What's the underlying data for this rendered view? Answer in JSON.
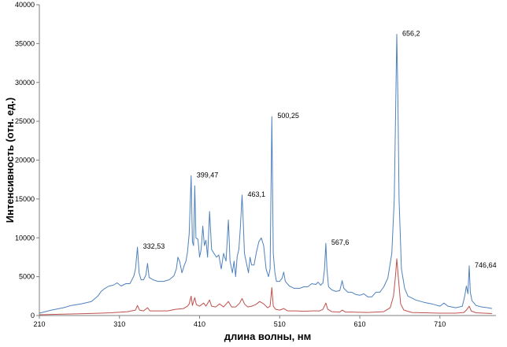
{
  "chart_data": {
    "type": "line",
    "title": "",
    "xlabel": "длина волны, нм",
    "ylabel": "Интенсивность (отн. ед.)",
    "xlim": [
      210,
      780
    ],
    "ylim": [
      0,
      40000
    ],
    "x_ticks": [
      210,
      310,
      410,
      510,
      610,
      710
    ],
    "y_ticks": [
      0,
      5000,
      10000,
      15000,
      20000,
      25000,
      30000,
      35000,
      40000
    ],
    "grid": false,
    "legend": "none",
    "colors": {
      "blue": "#4f81bd",
      "red": "#c0504d",
      "axis": "#7f7f7f"
    },
    "annotations": [
      {
        "text": "332,53",
        "x": 332.53,
        "y": 8800
      },
      {
        "text": "399,47",
        "x": 399.47,
        "y": 18000
      },
      {
        "text": "463,1",
        "x": 463.1,
        "y": 15500
      },
      {
        "text": "500,25",
        "x": 500.25,
        "y": 25600
      },
      {
        "text": "567,6",
        "x": 567.6,
        "y": 9300
      },
      {
        "text": "656,2",
        "x": 656.2,
        "y": 36200
      },
      {
        "text": "746,64",
        "x": 746.64,
        "y": 6400
      }
    ],
    "series": [
      {
        "color": "#4f81bd",
        "points": [
          [
            210,
            300
          ],
          [
            225,
            700
          ],
          [
            240,
            1000
          ],
          [
            250,
            1300
          ],
          [
            262,
            1500
          ],
          [
            275,
            1800
          ],
          [
            283,
            2500
          ],
          [
            287,
            3100
          ],
          [
            292,
            3500
          ],
          [
            297,
            3800
          ],
          [
            302,
            3900
          ],
          [
            307,
            4200
          ],
          [
            312,
            3800
          ],
          [
            318,
            4100
          ],
          [
            323,
            4100
          ],
          [
            328,
            5100
          ],
          [
            330,
            6000
          ],
          [
            332.5,
            8800
          ],
          [
            334.5,
            5500
          ],
          [
            337,
            4600
          ],
          [
            340,
            4600
          ],
          [
            343,
            5200
          ],
          [
            345,
            6700
          ],
          [
            347,
            4900
          ],
          [
            352,
            4600
          ],
          [
            358,
            4400
          ],
          [
            365,
            4400
          ],
          [
            372,
            4600
          ],
          [
            378,
            5100
          ],
          [
            381,
            6000
          ],
          [
            383,
            7500
          ],
          [
            385,
            7000
          ],
          [
            388,
            5500
          ],
          [
            391,
            6500
          ],
          [
            393,
            7000
          ],
          [
            395,
            8200
          ],
          [
            397,
            10500
          ],
          [
            399.5,
            18000
          ],
          [
            401,
            9500
          ],
          [
            402.5,
            9000
          ],
          [
            404,
            16700
          ],
          [
            405.5,
            10000
          ],
          [
            408,
            9800
          ],
          [
            410,
            7500
          ],
          [
            412,
            8500
          ],
          [
            414,
            11500
          ],
          [
            416,
            9000
          ],
          [
            418,
            9700
          ],
          [
            420,
            7500
          ],
          [
            422.5,
            13400
          ],
          [
            425,
            8500
          ],
          [
            428,
            8000
          ],
          [
            431,
            7500
          ],
          [
            434,
            7800
          ],
          [
            437,
            6000
          ],
          [
            440,
            8000
          ],
          [
            443,
            7000
          ],
          [
            446,
            12300
          ],
          [
            448,
            7000
          ],
          [
            451,
            5500
          ],
          [
            453,
            7000
          ],
          [
            455,
            5000
          ],
          [
            457,
            7600
          ],
          [
            459,
            8500
          ],
          [
            461,
            11500
          ],
          [
            463.1,
            15500
          ],
          [
            464.5,
            12000
          ],
          [
            466,
            8000
          ],
          [
            468,
            7000
          ],
          [
            471,
            5500
          ],
          [
            473,
            7500
          ],
          [
            475,
            6500
          ],
          [
            478,
            6500
          ],
          [
            481,
            8200
          ],
          [
            484,
            9500
          ],
          [
            487,
            10000
          ],
          [
            490,
            9000
          ],
          [
            493,
            6000
          ],
          [
            496,
            5000
          ],
          [
            498,
            6000
          ],
          [
            500.25,
            25600
          ],
          [
            502,
            8000
          ],
          [
            504,
            5500
          ],
          [
            506,
            4400
          ],
          [
            510,
            4400
          ],
          [
            513,
            4800
          ],
          [
            515,
            5600
          ],
          [
            517,
            4400
          ],
          [
            522,
            3800
          ],
          [
            528,
            3500
          ],
          [
            535,
            3500
          ],
          [
            540,
            3700
          ],
          [
            545,
            3700
          ],
          [
            550,
            4100
          ],
          [
            555,
            4000
          ],
          [
            558,
            4300
          ],
          [
            561,
            3900
          ],
          [
            564,
            4200
          ],
          [
            566,
            6000
          ],
          [
            567.6,
            9300
          ],
          [
            569,
            6000
          ],
          [
            571,
            3700
          ],
          [
            575,
            3300
          ],
          [
            580,
            3100
          ],
          [
            585,
            3200
          ],
          [
            588,
            4500
          ],
          [
            590,
            3500
          ],
          [
            595,
            3000
          ],
          [
            600,
            3000
          ],
          [
            605,
            2700
          ],
          [
            610,
            2600
          ],
          [
            615,
            2800
          ],
          [
            620,
            2400
          ],
          [
            625,
            2400
          ],
          [
            630,
            3000
          ],
          [
            635,
            3000
          ],
          [
            640,
            3700
          ],
          [
            645,
            4800
          ],
          [
            650,
            8000
          ],
          [
            653,
            15000
          ],
          [
            655,
            28000
          ],
          [
            656.2,
            36200
          ],
          [
            657.5,
            28000
          ],
          [
            659,
            15000
          ],
          [
            662,
            6000
          ],
          [
            666,
            3500
          ],
          [
            670,
            2500
          ],
          [
            680,
            2000
          ],
          [
            690,
            1700
          ],
          [
            700,
            1500
          ],
          [
            710,
            1200
          ],
          [
            715,
            1600
          ],
          [
            720,
            1200
          ],
          [
            730,
            1000
          ],
          [
            738,
            1200
          ],
          [
            741,
            2500
          ],
          [
            743,
            3800
          ],
          [
            745,
            2800
          ],
          [
            746.6,
            6400
          ],
          [
            748,
            3000
          ],
          [
            750,
            1900
          ],
          [
            755,
            1300
          ],
          [
            762,
            1100
          ],
          [
            770,
            1000
          ],
          [
            775,
            900
          ]
        ]
      },
      {
        "color": "#c0504d",
        "points": [
          [
            210,
            100
          ],
          [
            240,
            180
          ],
          [
            270,
            250
          ],
          [
            300,
            350
          ],
          [
            320,
            500
          ],
          [
            330,
            700
          ],
          [
            332.5,
            1300
          ],
          [
            335,
            700
          ],
          [
            340,
            600
          ],
          [
            345,
            1000
          ],
          [
            348,
            600
          ],
          [
            360,
            600
          ],
          [
            370,
            600
          ],
          [
            380,
            800
          ],
          [
            390,
            900
          ],
          [
            395,
            1200
          ],
          [
            397,
            1500
          ],
          [
            399.5,
            2500
          ],
          [
            401,
            1300
          ],
          [
            404,
            2300
          ],
          [
            406,
            1400
          ],
          [
            410,
            1200
          ],
          [
            415,
            1600
          ],
          [
            418,
            1200
          ],
          [
            422.5,
            2000
          ],
          [
            425,
            1200
          ],
          [
            430,
            1100
          ],
          [
            435,
            1500
          ],
          [
            440,
            1100
          ],
          [
            446,
            1800
          ],
          [
            450,
            1100
          ],
          [
            455,
            1100
          ],
          [
            460,
            1600
          ],
          [
            463.1,
            2200
          ],
          [
            466,
            1500
          ],
          [
            470,
            1100
          ],
          [
            475,
            1200
          ],
          [
            480,
            1400
          ],
          [
            485,
            1800
          ],
          [
            490,
            1500
          ],
          [
            495,
            1000
          ],
          [
            498,
            1200
          ],
          [
            500.25,
            3600
          ],
          [
            502,
            1200
          ],
          [
            505,
            800
          ],
          [
            510,
            700
          ],
          [
            515,
            900
          ],
          [
            520,
            600
          ],
          [
            530,
            600
          ],
          [
            540,
            550
          ],
          [
            550,
            600
          ],
          [
            560,
            600
          ],
          [
            564,
            800
          ],
          [
            567.6,
            1600
          ],
          [
            570,
            800
          ],
          [
            575,
            500
          ],
          [
            585,
            450
          ],
          [
            588,
            700
          ],
          [
            592,
            450
          ],
          [
            600,
            450
          ],
          [
            620,
            400
          ],
          [
            640,
            500
          ],
          [
            648,
            1000
          ],
          [
            652,
            2500
          ],
          [
            654.5,
            5000
          ],
          [
            656.2,
            7300
          ],
          [
            658,
            5000
          ],
          [
            661,
            1500
          ],
          [
            665,
            700
          ],
          [
            675,
            400
          ],
          [
            690,
            350
          ],
          [
            710,
            300
          ],
          [
            730,
            300
          ],
          [
            740,
            400
          ],
          [
            743,
            700
          ],
          [
            746.6,
            1200
          ],
          [
            749,
            600
          ],
          [
            755,
            350
          ],
          [
            775,
            250
          ]
        ]
      }
    ]
  }
}
